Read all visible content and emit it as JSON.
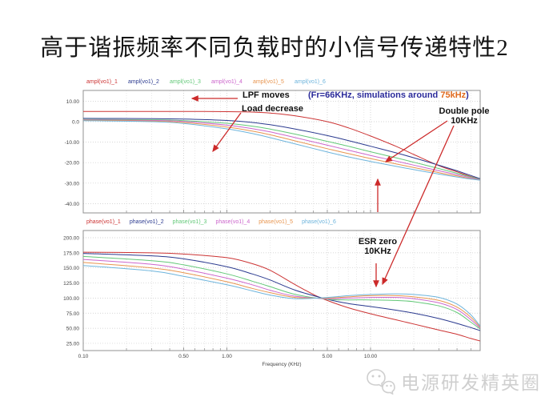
{
  "slide": {
    "title": "高于谐振频率不同负载时的小信号传递特性2",
    "watermark": "电源研发精英圈"
  },
  "annotations": {
    "lpf_moves": "LPF moves",
    "load_decrease": "Load decrease",
    "fr_note_prefix": "(Fr=66KHz, simulations around ",
    "fr_note_highlight": "75kHz",
    "fr_note_suffix": ")",
    "fr_note_color": "#2b2b9b",
    "fr_note_highlight_color": "#e06a1e",
    "double_pole_line1": "Double pole",
    "double_pole_line2": "10KHz",
    "esr_zero_line1": "ESR zero",
    "esr_zero_line2": "10KHz",
    "arrow_color": "#cc2a2a"
  },
  "chart_data": [
    {
      "type": "line",
      "title": "amplitude (dB) vs frequency",
      "x_axis": {
        "scale": "log",
        "range": [
          0.1,
          60
        ],
        "ticks": [
          0.1,
          0.5,
          1,
          5,
          10
        ],
        "tick_labels": [],
        "label": ""
      },
      "y_axis": {
        "range": [
          -45,
          15
        ],
        "ticks": [
          10,
          0,
          -10,
          -20,
          -30,
          -40
        ],
        "tick_labels": [
          "10.00",
          "0.0",
          "-10.00",
          "-20.00",
          "-30.00",
          "-40.00"
        ]
      },
      "grid": true,
      "legend_position": "top",
      "series": [
        {
          "name": "ampl(vo1)_1",
          "color": "#cc3333",
          "points": [
            [
              0.1,
              5.0
            ],
            [
              0.3,
              5.0
            ],
            [
              0.5,
              5.0
            ],
            [
              1,
              4.9
            ],
            [
              1.5,
              4.7
            ],
            [
              2,
              4.2
            ],
            [
              3,
              2.8
            ],
            [
              5,
              0.0
            ],
            [
              7,
              -3.0
            ],
            [
              10,
              -7.0
            ],
            [
              15,
              -12.0
            ],
            [
              20,
              -16.0
            ],
            [
              30,
              -21.5
            ],
            [
              40,
              -24.5
            ],
            [
              50,
              -26.8
            ],
            [
              60,
              -28.3
            ]
          ]
        },
        {
          "name": "ampl(vo1)_2",
          "color": "#2b3a8f",
          "points": [
            [
              0.1,
              1.6
            ],
            [
              0.3,
              1.5
            ],
            [
              0.5,
              1.3
            ],
            [
              1,
              0.6
            ],
            [
              1.5,
              -0.4
            ],
            [
              2,
              -1.5
            ],
            [
              3,
              -3.6
            ],
            [
              5,
              -6.8
            ],
            [
              7,
              -9.2
            ],
            [
              10,
              -12.0
            ],
            [
              15,
              -15.2
            ],
            [
              20,
              -17.6
            ],
            [
              30,
              -21.3
            ],
            [
              40,
              -24.0
            ],
            [
              50,
              -26.3
            ],
            [
              60,
              -28.2
            ]
          ]
        },
        {
          "name": "ampl(vo1)_3",
          "color": "#63c878",
          "points": [
            [
              0.1,
              1.1
            ],
            [
              0.3,
              0.9
            ],
            [
              0.5,
              0.5
            ],
            [
              1,
              -0.8
            ],
            [
              1.5,
              -2.2
            ],
            [
              2,
              -3.6
            ],
            [
              3,
              -6.1
            ],
            [
              5,
              -9.6
            ],
            [
              7,
              -12.0
            ],
            [
              10,
              -14.7
            ],
            [
              15,
              -17.6
            ],
            [
              20,
              -19.8
            ],
            [
              30,
              -22.9
            ],
            [
              40,
              -25.2
            ],
            [
              50,
              -27.0
            ],
            [
              60,
              -28.4
            ]
          ]
        },
        {
          "name": "ampl(vo1)_4",
          "color": "#cc66cc",
          "points": [
            [
              0.1,
              0.9
            ],
            [
              0.3,
              0.6
            ],
            [
              0.5,
              0.1
            ],
            [
              1,
              -1.7
            ],
            [
              1.5,
              -3.4
            ],
            [
              2,
              -5.0
            ],
            [
              3,
              -7.8
            ],
            [
              5,
              -11.5
            ],
            [
              7,
              -13.9
            ],
            [
              10,
              -16.5
            ],
            [
              15,
              -19.2
            ],
            [
              20,
              -21.2
            ],
            [
              30,
              -24.0
            ],
            [
              40,
              -25.9
            ],
            [
              50,
              -27.4
            ],
            [
              60,
              -28.5
            ]
          ]
        },
        {
          "name": "ampl(vo1)_5",
          "color": "#e8954f",
          "points": [
            [
              0.1,
              0.7
            ],
            [
              0.3,
              0.3
            ],
            [
              0.5,
              -0.4
            ],
            [
              1,
              -2.6
            ],
            [
              1.5,
              -4.6
            ],
            [
              2,
              -6.4
            ],
            [
              3,
              -9.4
            ],
            [
              5,
              -13.2
            ],
            [
              7,
              -15.6
            ],
            [
              10,
              -18.0
            ],
            [
              15,
              -20.6
            ],
            [
              20,
              -22.4
            ],
            [
              30,
              -24.9
            ],
            [
              40,
              -26.5
            ],
            [
              50,
              -27.8
            ],
            [
              60,
              -28.6
            ]
          ]
        },
        {
          "name": "ampl(vo1)_6",
          "color": "#6db4dc",
          "points": [
            [
              0.1,
              0.5
            ],
            [
              0.3,
              0.0
            ],
            [
              0.5,
              -0.9
            ],
            [
              1,
              -3.5
            ],
            [
              1.5,
              -5.8
            ],
            [
              2,
              -7.8
            ],
            [
              3,
              -10.9
            ],
            [
              5,
              -14.8
            ],
            [
              7,
              -17.2
            ],
            [
              10,
              -19.4
            ],
            [
              15,
              -21.8
            ],
            [
              20,
              -23.4
            ],
            [
              30,
              -25.6
            ],
            [
              40,
              -27.0
            ],
            [
              50,
              -28.0
            ],
            [
              60,
              -28.7
            ]
          ]
        }
      ]
    },
    {
      "type": "line",
      "title": "phase (deg) vs frequency",
      "x_axis": {
        "scale": "log",
        "range": [
          0.1,
          60
        ],
        "ticks": [
          0.1,
          0.5,
          1,
          5,
          10
        ],
        "tick_labels": [
          "0.10",
          "0.50",
          "1.00",
          "5.00",
          "10.00"
        ],
        "label": "Frequency (KHz)"
      },
      "y_axis": {
        "range": [
          12.5,
          212.5
        ],
        "ticks": [
          200,
          175,
          150,
          125,
          100,
          75,
          50,
          25
        ],
        "tick_labels": [
          "200.00",
          "175.00",
          "150.00",
          "125.00",
          "100.00",
          "75.00",
          "50.00",
          "25.00"
        ]
      },
      "grid": true,
      "legend_position": "top",
      "series": [
        {
          "name": "phase(vo1)_1",
          "color": "#cc3333",
          "points": [
            [
              0.1,
              176
            ],
            [
              0.3,
              175
            ],
            [
              0.5,
              173
            ],
            [
              1,
              167
            ],
            [
              1.5,
              157
            ],
            [
              2,
              146
            ],
            [
              3,
              122
            ],
            [
              4,
              106
            ],
            [
              5,
              96
            ],
            [
              7,
              84
            ],
            [
              10,
              74
            ],
            [
              15,
              64
            ],
            [
              20,
              57
            ],
            [
              30,
              47
            ],
            [
              40,
              40
            ],
            [
              50,
              33
            ],
            [
              60,
              28
            ]
          ]
        },
        {
          "name": "phase(vo1)_2",
          "color": "#2b3a8f",
          "points": [
            [
              0.1,
              174
            ],
            [
              0.3,
              170
            ],
            [
              0.5,
              165
            ],
            [
              1,
              152
            ],
            [
              1.5,
              140
            ],
            [
              2,
              130
            ],
            [
              3,
              113
            ],
            [
              5,
              98
            ],
            [
              7,
              91
            ],
            [
              10,
              86
            ],
            [
              15,
              80
            ],
            [
              20,
              75
            ],
            [
              30,
              66
            ],
            [
              40,
              58
            ],
            [
              50,
              51
            ],
            [
              60,
              45
            ]
          ]
        },
        {
          "name": "phase(vo1)_3",
          "color": "#63c878",
          "points": [
            [
              0.1,
              169
            ],
            [
              0.3,
              162
            ],
            [
              0.5,
              155
            ],
            [
              1,
              140
            ],
            [
              1.5,
              128
            ],
            [
              2,
              119
            ],
            [
              3,
              106
            ],
            [
              5,
              98
            ],
            [
              7,
              97
            ],
            [
              10,
              97
            ],
            [
              15,
              96
            ],
            [
              20,
              94
            ],
            [
              30,
              87
            ],
            [
              40,
              76
            ],
            [
              50,
              60
            ],
            [
              60,
              46
            ]
          ]
        },
        {
          "name": "phase(vo1)_4",
          "color": "#cc66cc",
          "points": [
            [
              0.1,
              164
            ],
            [
              0.3,
              156
            ],
            [
              0.5,
              148
            ],
            [
              1,
              133
            ],
            [
              1.5,
              122
            ],
            [
              2,
              113
            ],
            [
              3,
              103
            ],
            [
              5,
              99
            ],
            [
              7,
              100
            ],
            [
              10,
              101
            ],
            [
              15,
              101
            ],
            [
              20,
              99
            ],
            [
              30,
              92
            ],
            [
              40,
              81
            ],
            [
              50,
              64
            ],
            [
              60,
              47
            ]
          ]
        },
        {
          "name": "phase(vo1)_5",
          "color": "#e8954f",
          "points": [
            [
              0.1,
              159
            ],
            [
              0.3,
              150
            ],
            [
              0.5,
              142
            ],
            [
              1,
              127
            ],
            [
              1.5,
              116
            ],
            [
              2,
              109
            ],
            [
              3,
              101
            ],
            [
              5,
              100
            ],
            [
              7,
              102
            ],
            [
              10,
              104
            ],
            [
              15,
              104
            ],
            [
              20,
              102
            ],
            [
              30,
              96
            ],
            [
              40,
              85
            ],
            [
              50,
              68
            ],
            [
              60,
              48
            ]
          ]
        },
        {
          "name": "phase(vo1)_6",
          "color": "#6db4dc",
          "points": [
            [
              0.1,
              154
            ],
            [
              0.3,
              145
            ],
            [
              0.5,
              136
            ],
            [
              1,
              122
            ],
            [
              1.5,
              112
            ],
            [
              2,
              105
            ],
            [
              3,
              99
            ],
            [
              5,
              101
            ],
            [
              7,
              104
            ],
            [
              10,
              106
            ],
            [
              15,
              107
            ],
            [
              20,
              106
            ],
            [
              30,
              101
            ],
            [
              40,
              90
            ],
            [
              50,
              72
            ],
            [
              60,
              49
            ]
          ]
        }
      ]
    }
  ]
}
